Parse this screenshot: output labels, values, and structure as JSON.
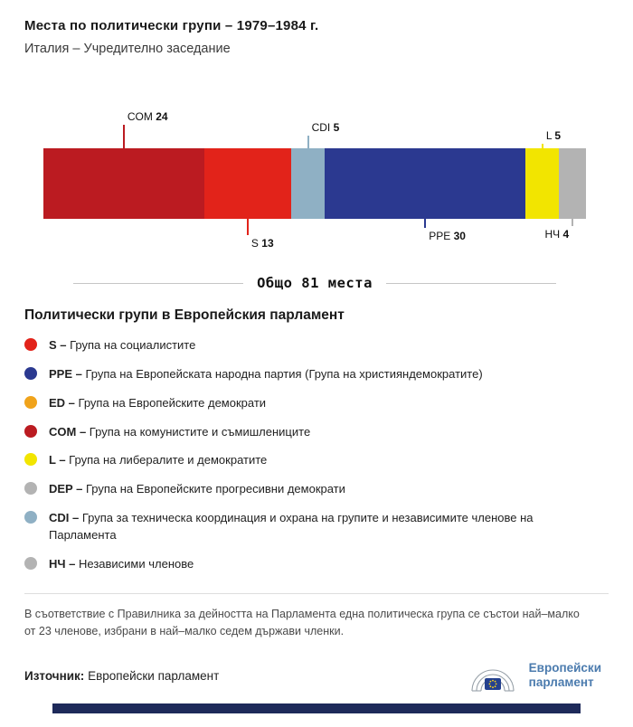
{
  "header": {
    "title": "Места по политически групи – 1979–1984 г.",
    "subtitle": "Италия – Учредително заседание"
  },
  "chart_data": {
    "type": "bar",
    "title": "Места по политически групи – 1979–1984 г.",
    "subtitle": "Италия – Учредително заседание",
    "total": 81,
    "total_label": "Общо 81 места",
    "orientation": "horizontal-stacked",
    "segments": [
      {
        "code": "COM",
        "seats": 24,
        "color": "#bb1b21",
        "label_position": "top"
      },
      {
        "code": "S",
        "seats": 13,
        "color": "#e2231a",
        "label_position": "bottom"
      },
      {
        "code": "CDI",
        "seats": 5,
        "color": "#8fb0c4",
        "label_position": "top"
      },
      {
        "code": "PPE",
        "seats": 30,
        "color": "#2b3990",
        "label_position": "bottom"
      },
      {
        "code": "L",
        "seats": 5,
        "color": "#f2e500",
        "label_position": "top"
      },
      {
        "code": "НЧ",
        "seats": 4,
        "color": "#b3b3b3",
        "label_position": "bottom"
      }
    ]
  },
  "legend": {
    "title": "Политически групи в Европейския парламент",
    "items": [
      {
        "code": "S –",
        "label": "Група на социалистите",
        "color": "#e2231a"
      },
      {
        "code": "PPE –",
        "label": "Група на Европейската народна партия (Група на християндемократите)",
        "color": "#2b3990"
      },
      {
        "code": "ED –",
        "label": "Група на Европейските демократи",
        "color": "#f0a31b"
      },
      {
        "code": "COM –",
        "label": "Група на комунистите и съмишлениците",
        "color": "#bb1b21"
      },
      {
        "code": "L –",
        "label": "Група на либералите и демократите",
        "color": "#f2e500"
      },
      {
        "code": "DEP –",
        "label": "Група на Европейските прогресивни демократи",
        "color": "#b3b3b3"
      },
      {
        "code": "CDI –",
        "label": "Група за техническа координация и охрана на групите и независимите членове на Парламента",
        "color": "#8fb0c4"
      },
      {
        "code": "НЧ –",
        "label": "Независими членове",
        "color": "#b3b3b3"
      }
    ]
  },
  "note": "В съответствие с Правилника за дейността на Парламента една политическа група се състои най–малко от 23 членове, избрани в най–малко седем държави членки.",
  "footer": {
    "source_label": "Източник:",
    "source_value": "Европейски парламент",
    "logo_line1": "Европейски",
    "logo_line2": "парламент"
  }
}
